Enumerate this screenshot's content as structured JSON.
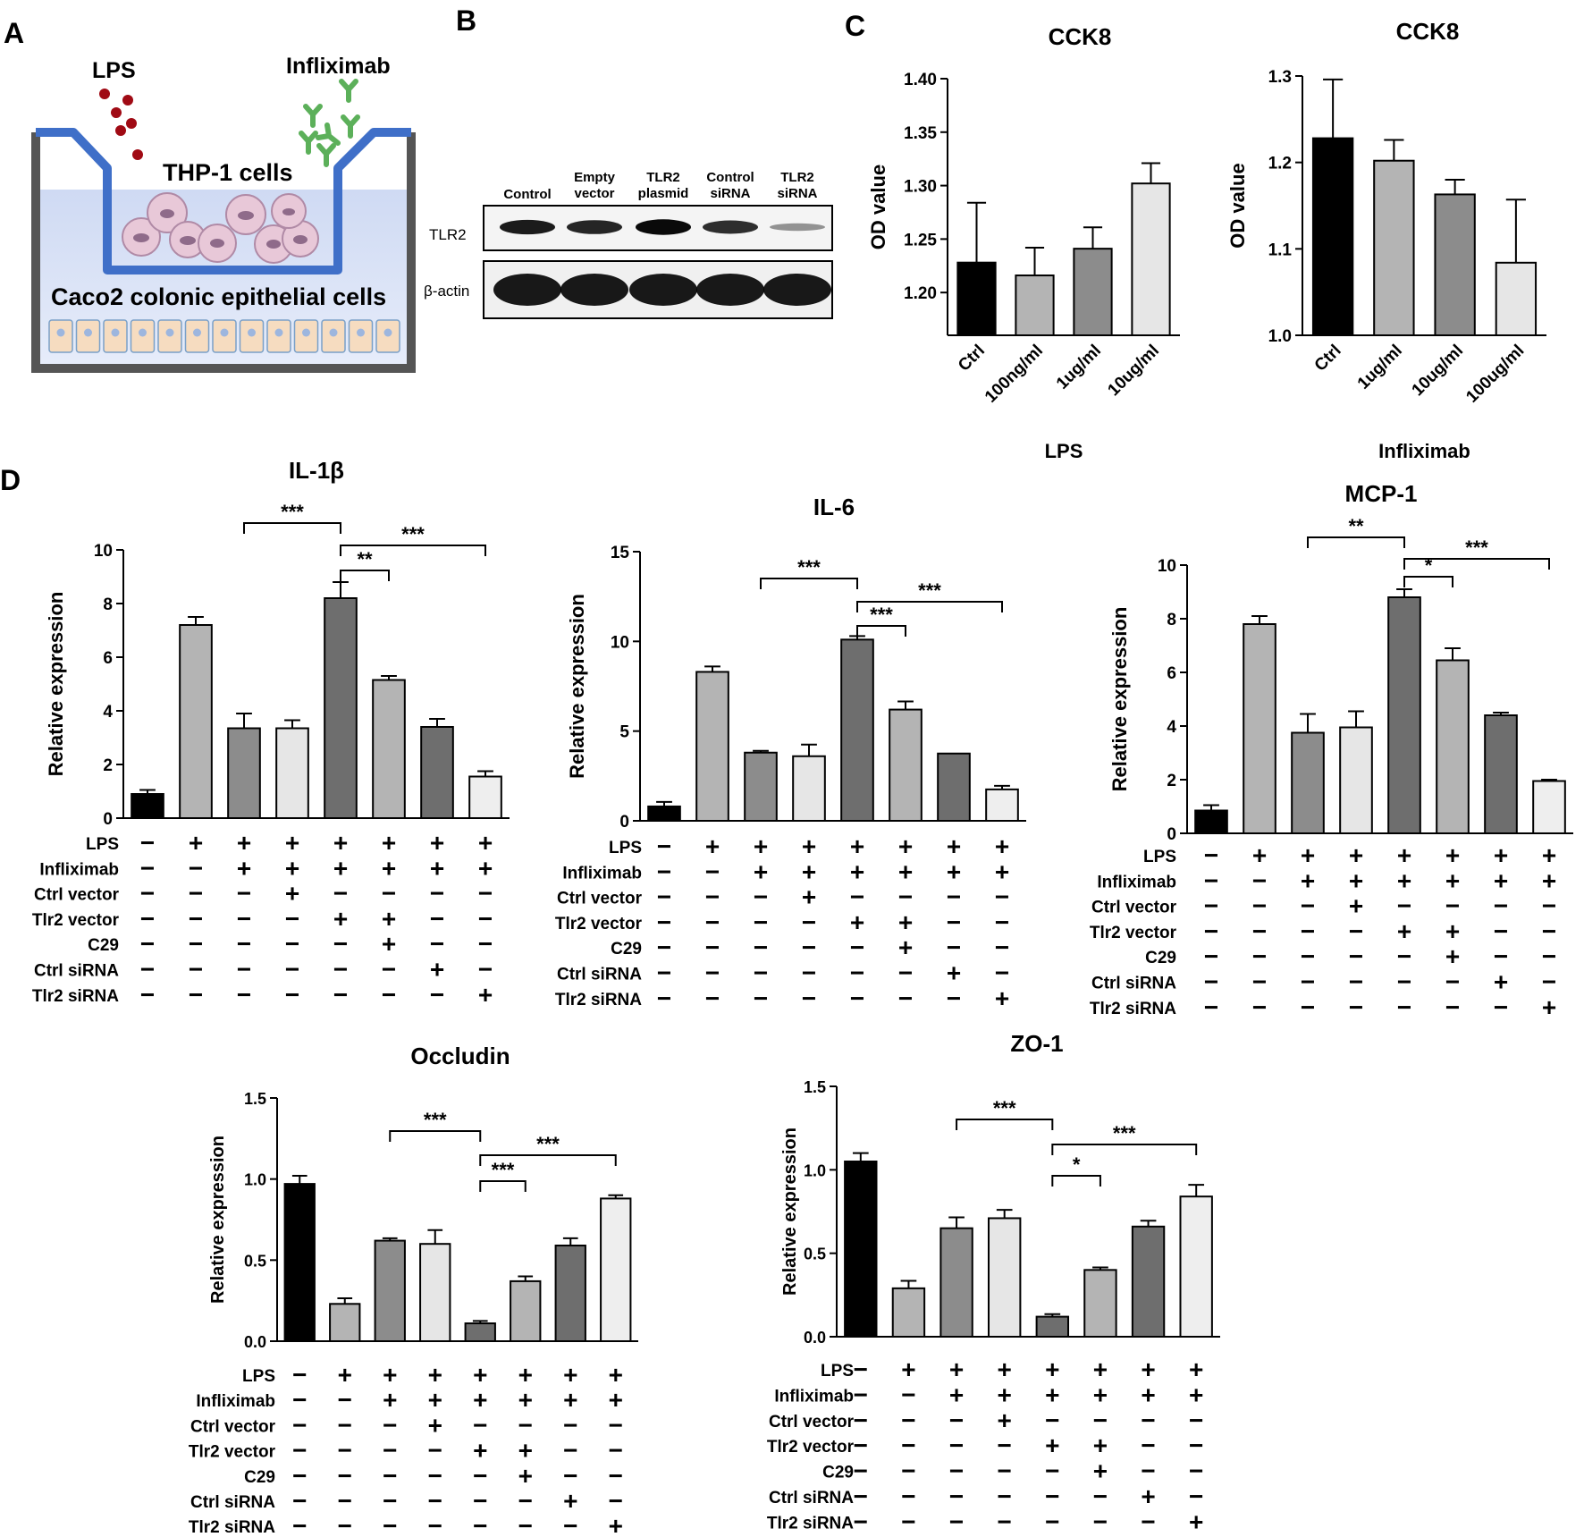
{
  "panel_letters": [
    "A",
    "B",
    "C",
    "D"
  ],
  "panel_a": {
    "lps_label": "LPS",
    "drug_label": "Infliximab",
    "upper_cells_label": "THP-1 cells",
    "lower_cells_label": "Caco2 colonic epithelial cells"
  },
  "panel_b": {
    "lane_labels": [
      [
        "Control"
      ],
      [
        "Empty",
        "vector"
      ],
      [
        "TLR2",
        "plasmid"
      ],
      [
        "Control",
        "siRNA"
      ],
      [
        "TLR2",
        "siRNA"
      ]
    ],
    "row_labels": [
      "TLR2",
      "β-actin"
    ],
    "tlr2_band_intensity": [
      0.85,
      0.8,
      0.95,
      0.75,
      0.2
    ],
    "actin_band_intensity": [
      1,
      1,
      1,
      1,
      1
    ]
  },
  "condition_rows": [
    "LPS",
    "Infliximab",
    "Ctrl vector",
    "Tlr2 vector",
    "C29",
    "Ctrl siRNA",
    "Tlr2 siRNA"
  ],
  "condition_signs": [
    [
      "−",
      "+",
      "+",
      "+",
      "+",
      "+",
      "+",
      "+"
    ],
    [
      "−",
      "−",
      "+",
      "+",
      "+",
      "+",
      "+",
      "+"
    ],
    [
      "−",
      "−",
      "−",
      "+",
      "−",
      "−",
      "−",
      "−"
    ],
    [
      "−",
      "−",
      "−",
      "−",
      "+",
      "+",
      "−",
      "−"
    ],
    [
      "−",
      "−",
      "−",
      "−",
      "−",
      "+",
      "−",
      "−"
    ],
    [
      "−",
      "−",
      "−",
      "−",
      "−",
      "−",
      "+",
      "−"
    ],
    [
      "−",
      "−",
      "−",
      "−",
      "−",
      "−",
      "−",
      "+"
    ]
  ],
  "group_colors": [
    "#000000",
    "#b4b4b4",
    "#8c8c8c",
    "#e6e6e6",
    "#6e6e6e",
    "#b4b4b4",
    "#6e6e6e",
    "#eeeeee"
  ],
  "chart_data": [
    {
      "id": "cck8-lps",
      "type": "bar",
      "title": "CCK8",
      "categories": [
        "Ctrl",
        "100ng/ml",
        "1ug/ml",
        "10ug/ml"
      ],
      "values": [
        1.228,
        1.216,
        1.241,
        1.302
      ],
      "errors": [
        0.056,
        0.026,
        0.02,
        0.019
      ],
      "colors": [
        "#000000",
        "#b4b4b4",
        "#8c8c8c",
        "#e6e6e6"
      ],
      "xlabel": "LPS",
      "ylabel": "OD value",
      "ylim": [
        1.16,
        1.4
      ],
      "yticks": [
        1.2,
        1.25,
        1.3,
        1.35,
        1.4
      ],
      "ytick_labels": [
        "1.20",
        "1.25",
        "1.30",
        "1.35",
        "1.40"
      ]
    },
    {
      "id": "cck8-ifx",
      "type": "bar",
      "title": "CCK8",
      "categories": [
        "Ctrl",
        "1ug/ml",
        "10ug/ml",
        "100ug/ml"
      ],
      "values": [
        1.228,
        1.202,
        1.163,
        1.084
      ],
      "errors": [
        0.068,
        0.024,
        0.017,
        0.073
      ],
      "colors": [
        "#000000",
        "#b4b4b4",
        "#8c8c8c",
        "#e6e6e6"
      ],
      "xlabel": "Infliximab",
      "ylabel": "OD value",
      "ylim": [
        1.0,
        1.3
      ],
      "yticks": [
        1.0,
        1.1,
        1.2,
        1.3
      ],
      "ytick_labels": [
        "1.0",
        "1.1",
        "1.2",
        "1.3"
      ]
    },
    {
      "id": "il1b",
      "type": "bar",
      "title": "IL-1β",
      "ylabel": "Relative expression",
      "categories": [
        "1",
        "2",
        "3",
        "4",
        "5",
        "6",
        "7",
        "8"
      ],
      "values": [
        0.9,
        7.2,
        3.35,
        3.35,
        8.2,
        5.15,
        3.4,
        1.55
      ],
      "errors": [
        0.15,
        0.3,
        0.55,
        0.3,
        0.6,
        0.15,
        0.3,
        0.2
      ],
      "ylim": [
        0,
        10
      ],
      "yticks": [
        0,
        2,
        4,
        6,
        8,
        10
      ],
      "ytick_labels": [
        "0",
        "2",
        "4",
        "6",
        "8",
        "10"
      ],
      "brackets": [
        {
          "from": 3,
          "to": 5,
          "label": "***"
        },
        {
          "from": 5,
          "to": 8,
          "label": "***"
        },
        {
          "from": 5,
          "to": 6,
          "label": "**"
        }
      ]
    },
    {
      "id": "il6",
      "type": "bar",
      "title": "IL-6",
      "ylabel": "Relative expression",
      "categories": [
        "1",
        "2",
        "3",
        "4",
        "5",
        "6",
        "7",
        "8"
      ],
      "values": [
        0.8,
        8.3,
        3.8,
        3.6,
        10.1,
        6.2,
        3.75,
        1.75
      ],
      "errors": [
        0.25,
        0.3,
        0.1,
        0.65,
        0.2,
        0.45,
        0.0,
        0.2
      ],
      "ylim": [
        0,
        15
      ],
      "yticks": [
        0,
        5,
        10,
        15
      ],
      "ytick_labels": [
        "0",
        "5",
        "10",
        "15"
      ],
      "brackets": [
        {
          "from": 3,
          "to": 5,
          "label": "***"
        },
        {
          "from": 5,
          "to": 8,
          "label": "***"
        },
        {
          "from": 5,
          "to": 6,
          "label": "***"
        }
      ]
    },
    {
      "id": "mcp1",
      "type": "bar",
      "title": "MCP-1",
      "ylabel": "Relative expression",
      "categories": [
        "1",
        "2",
        "3",
        "4",
        "5",
        "6",
        "7",
        "8"
      ],
      "values": [
        0.85,
        7.8,
        3.75,
        3.95,
        8.8,
        6.45,
        4.4,
        1.95
      ],
      "errors": [
        0.2,
        0.3,
        0.7,
        0.6,
        0.3,
        0.45,
        0.1,
        0.05
      ],
      "ylim": [
        0,
        10
      ],
      "yticks": [
        0,
        2,
        4,
        6,
        8,
        10
      ],
      "ytick_labels": [
        "0",
        "2",
        "4",
        "6",
        "8",
        "10"
      ],
      "brackets": [
        {
          "from": 3,
          "to": 5,
          "label": "**"
        },
        {
          "from": 5,
          "to": 8,
          "label": "***"
        },
        {
          "from": 5,
          "to": 6,
          "label": "*"
        }
      ]
    },
    {
      "id": "occludin",
      "type": "bar",
      "title": "Occludin",
      "ylabel": "Relative expression",
      "categories": [
        "1",
        "2",
        "3",
        "4",
        "5",
        "6",
        "7",
        "8"
      ],
      "values": [
        0.97,
        0.23,
        0.62,
        0.6,
        0.11,
        0.37,
        0.59,
        0.88
      ],
      "errors": [
        0.05,
        0.035,
        0.015,
        0.085,
        0.015,
        0.03,
        0.045,
        0.02
      ],
      "ylim": [
        0,
        1.5
      ],
      "yticks": [
        0,
        0.5,
        1.0,
        1.5
      ],
      "ytick_labels": [
        "0.0",
        "0.5",
        "1.0",
        "1.5"
      ],
      "brackets": [
        {
          "from": 3,
          "to": 5,
          "label": "***"
        },
        {
          "from": 5,
          "to": 8,
          "label": "***"
        },
        {
          "from": 5,
          "to": 6,
          "label": "***"
        }
      ]
    },
    {
      "id": "zo1",
      "type": "bar",
      "title": "ZO-1",
      "ylabel": "Relative expression",
      "categories": [
        "1",
        "2",
        "3",
        "4",
        "5",
        "6",
        "7",
        "8"
      ],
      "values": [
        1.05,
        0.29,
        0.65,
        0.71,
        0.12,
        0.4,
        0.66,
        0.84
      ],
      "errors": [
        0.05,
        0.045,
        0.065,
        0.05,
        0.015,
        0.015,
        0.035,
        0.07
      ],
      "ylim": [
        0,
        1.5
      ],
      "yticks": [
        0,
        0.5,
        1.0,
        1.5
      ],
      "ytick_labels": [
        "0.0",
        "0.5",
        "1.0",
        "1.5"
      ],
      "brackets": [
        {
          "from": 3,
          "to": 5,
          "label": "***"
        },
        {
          "from": 5,
          "to": 8,
          "label": "***"
        },
        {
          "from": 5,
          "to": 6,
          "label": "*"
        }
      ]
    }
  ]
}
